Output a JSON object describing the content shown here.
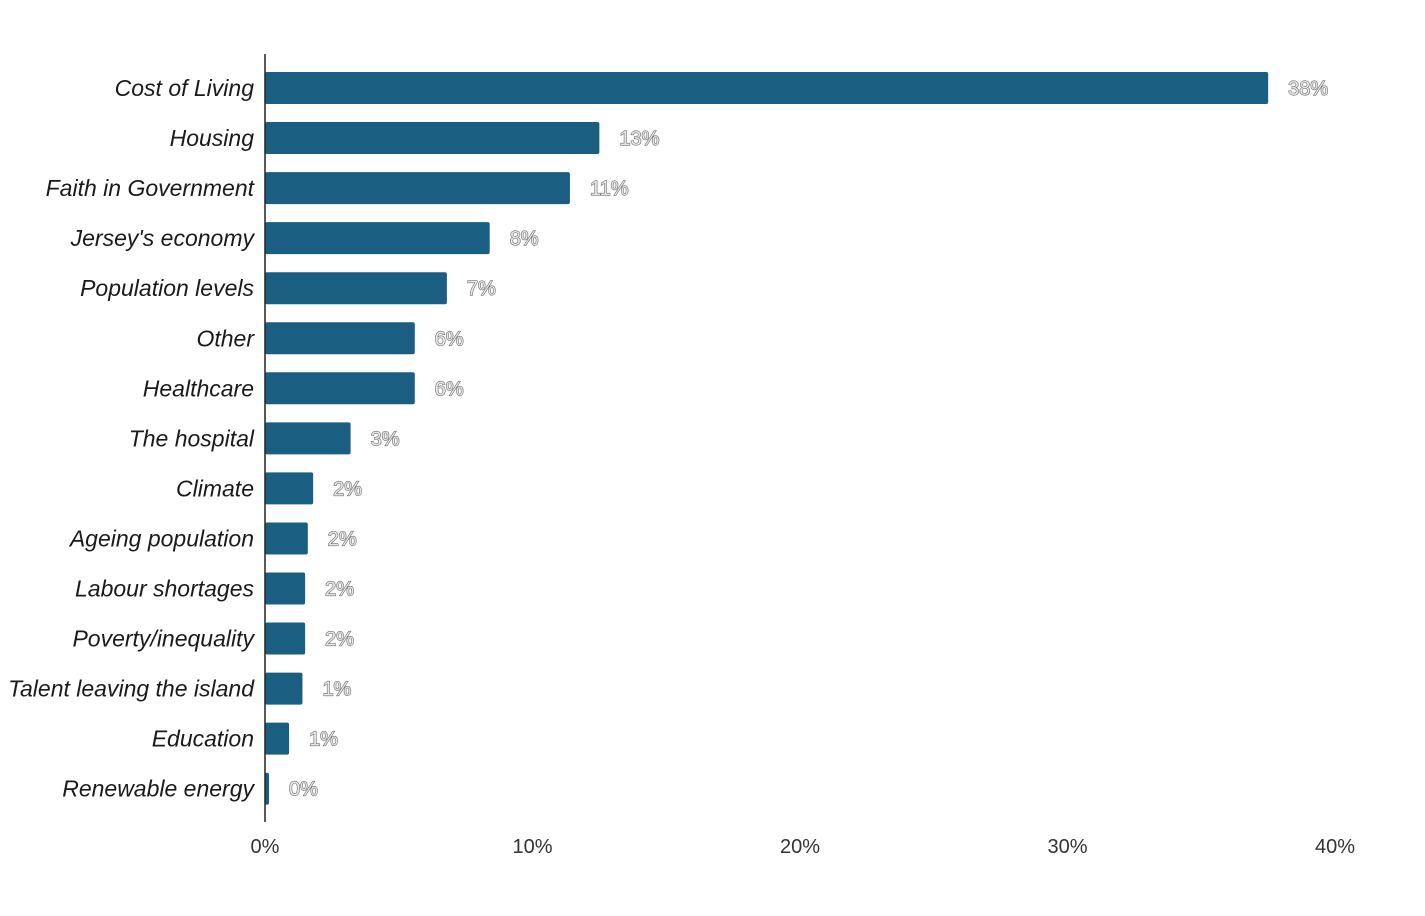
{
  "chart_data": {
    "type": "bar",
    "orientation": "horizontal",
    "categories": [
      "Cost of Living",
      "Housing",
      "Faith in Government",
      "Jersey's economy",
      "Population levels",
      "Other",
      "Healthcare",
      "The hospital",
      "Climate",
      "Ageing population",
      "Labour shortages",
      "Poverty/inequality",
      "Talent leaving the island",
      "Education",
      "Renewable energy"
    ],
    "values": [
      37.5,
      12.5,
      11.4,
      8.4,
      6.8,
      5.6,
      5.6,
      3.2,
      1.8,
      1.6,
      1.5,
      1.5,
      1.4,
      0.9,
      0.15
    ],
    "value_labels": [
      "38%",
      "13%",
      "11%",
      "8%",
      "7%",
      "6%",
      "6%",
      "3%",
      "2%",
      "2%",
      "2%",
      "2%",
      "1%",
      "1%",
      "0%"
    ],
    "x_ticks": [
      "0%",
      "10%",
      "20%",
      "30%",
      "40%"
    ],
    "xlim": [
      0,
      40
    ],
    "title": "",
    "xlabel": "",
    "ylabel": "",
    "grid": false,
    "legend": "none",
    "bar_color": "#1a5f82"
  }
}
